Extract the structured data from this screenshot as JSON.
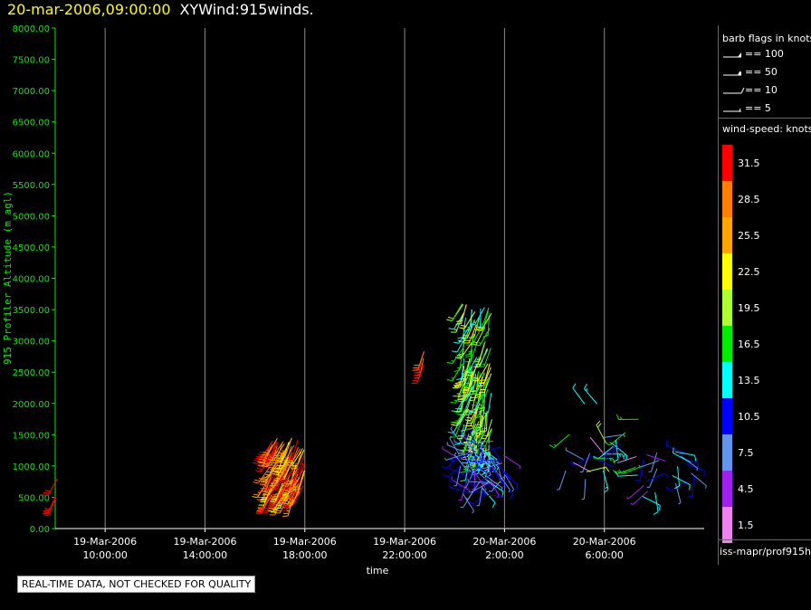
{
  "header": {
    "date": "20-mar-2006,09:00:00",
    "product": "XYWind:915winds."
  },
  "notice": "REAL-TIME DATA, NOT CHECKED FOR QUALITY",
  "legend": {
    "barb_title": "barb flags in knots",
    "barbs": [
      {
        "label": "== 100",
        "icon": "pennant-barb-icon"
      },
      {
        "label": "== 50",
        "icon": "flag-barb-icon"
      },
      {
        "label": "== 10",
        "icon": "full-barb-icon"
      },
      {
        "label": "== 5",
        "icon": "half-barb-icon"
      }
    ],
    "colorbar_title": "wind-speed: knots",
    "source": "iss-mapr/prof915h"
  },
  "chart_data": {
    "type": "scatter",
    "title": "",
    "xlabel": "time",
    "ylabel": "915 Profiler Altitude (m agl)",
    "ylim": [
      0,
      8000
    ],
    "xlim_hours_range": [
      "19-Mar-2006 08:00",
      "20-Mar-2006 09:00"
    ],
    "yticks": [
      "0.00",
      "500.00",
      "1000.00",
      "1500.00",
      "2000.00",
      "2500.00",
      "3000.00",
      "3500.00",
      "4000.00",
      "4500.00",
      "5000.00",
      "5500.00",
      "6000.00",
      "6500.00",
      "7000.00",
      "7500.00",
      "8000.00"
    ],
    "xticks": [
      {
        "date": "19-Mar-2006",
        "time": "10:00:00",
        "hour": 10
      },
      {
        "date": "19-Mar-2006",
        "time": "14:00:00",
        "hour": 14
      },
      {
        "date": "19-Mar-2006",
        "time": "18:00:00",
        "hour": 18
      },
      {
        "date": "19-Mar-2006",
        "time": "22:00:00",
        "hour": 22
      },
      {
        "date": "20-Mar-2006",
        "time": "2:00:00",
        "hour": 26
      },
      {
        "date": "20-Mar-2006",
        "time": "6:00:00",
        "hour": 30
      }
    ],
    "grid": "vertical at x ticks",
    "colorbar": [
      {
        "value": 31.5,
        "color": "#ff0000",
        "label": "31.5"
      },
      {
        "value": 28.5,
        "color": "#ff7f00",
        "label": "28.5"
      },
      {
        "value": 25.5,
        "color": "#ffa500",
        "label": "25.5"
      },
      {
        "value": 22.5,
        "color": "#ffff00",
        "label": "22.5"
      },
      {
        "value": 19.5,
        "color": "#adff2f",
        "label": "19.5"
      },
      {
        "value": 16.5,
        "color": "#00ee00",
        "label": "16.5"
      },
      {
        "value": 13.5,
        "color": "#00ffff",
        "label": "13.5"
      },
      {
        "value": 10.5,
        "color": "#0000ff",
        "label": "10.5"
      },
      {
        "value": 7.5,
        "color": "#6495ed",
        "label": "7.5"
      },
      {
        "value": 4.5,
        "color": "#a020f0",
        "label": "4.5"
      },
      {
        "value": 1.5,
        "color": "#ee82ee",
        "label": "1.5"
      }
    ],
    "clusters": [
      {
        "t_start": 8.0,
        "t_end": 8.1,
        "alt_min": 500,
        "alt_max": 800,
        "speed_min": 30,
        "speed_max": 32,
        "dir_min": 200,
        "dir_max": 220,
        "n": 3
      },
      {
        "t_start": 16.5,
        "t_end": 18.0,
        "alt_min": 500,
        "alt_max": 1450,
        "speed_min": 22,
        "speed_max": 33,
        "dir_min": 195,
        "dir_max": 215,
        "n": 110
      },
      {
        "t_start": 22.6,
        "t_end": 22.8,
        "alt_min": 2600,
        "alt_max": 2900,
        "speed_min": 29,
        "speed_max": 32,
        "dir_min": 190,
        "dir_max": 205,
        "n": 4
      },
      {
        "t_start": 24.3,
        "t_end": 25.5,
        "alt_min": 1200,
        "alt_max": 3600,
        "speed_min": 12,
        "speed_max": 24,
        "dir_min": 180,
        "dir_max": 215,
        "n": 130
      },
      {
        "t_start": 24.2,
        "t_end": 26.0,
        "alt_min": 500,
        "alt_max": 1400,
        "speed_min": 4,
        "speed_max": 14,
        "dir_min": 120,
        "dir_max": 330,
        "n": 80
      },
      {
        "t_start": 28.3,
        "t_end": 31.5,
        "alt_min": 700,
        "alt_max": 2200,
        "speed_min": 1,
        "speed_max": 20,
        "dir_min": 40,
        "dir_max": 340,
        "n": 28
      },
      {
        "t_start": 31.5,
        "t_end": 33.6,
        "alt_min": 500,
        "alt_max": 1300,
        "speed_min": 3,
        "speed_max": 14,
        "dir_min": 60,
        "dir_max": 300,
        "n": 22
      }
    ]
  }
}
